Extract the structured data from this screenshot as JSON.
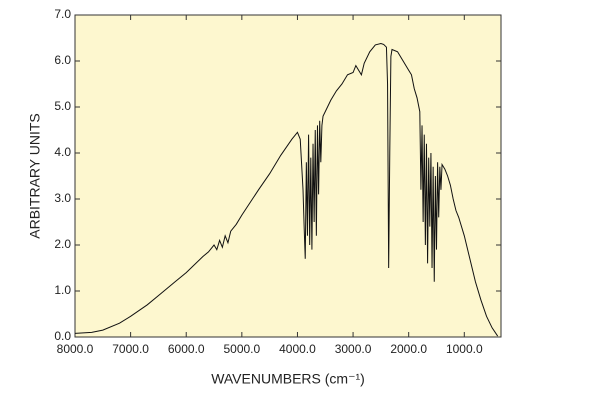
{
  "chart_data": {
    "type": "line",
    "x_label": "WAVENUMBERS (cm⁻¹)",
    "y_label": "ARBITRARY UNITS",
    "xlim": [
      8000,
      340
    ],
    "ylim": [
      0,
      7
    ],
    "xticks": [
      {
        "value": 8000,
        "label": "8000.0"
      },
      {
        "value": 7000,
        "label": "7000.0"
      },
      {
        "value": 6000,
        "label": "6000.0"
      },
      {
        "value": 5000,
        "label": "5000.0"
      },
      {
        "value": 4000,
        "label": "4000.0"
      },
      {
        "value": 3000,
        "label": "3000.0"
      },
      {
        "value": 2000,
        "label": "2000.0"
      },
      {
        "value": 1000,
        "label": "1000.0"
      }
    ],
    "yticks": [
      {
        "value": 0,
        "label": "0.0"
      },
      {
        "value": 1,
        "label": "1.0"
      },
      {
        "value": 2,
        "label": "2.0"
      },
      {
        "value": 3,
        "label": "3.0"
      },
      {
        "value": 4,
        "label": "4.0"
      },
      {
        "value": 5,
        "label": "5.0"
      },
      {
        "value": 6,
        "label": "6.0"
      },
      {
        "value": 7,
        "label": "7.0"
      }
    ],
    "plot_background": "#fdf7cf",
    "series": [
      {
        "color": "#111111",
        "x": [
          8000,
          7700,
          7500,
          7200,
          7000,
          6700,
          6500,
          6200,
          6000,
          5700,
          5600,
          5500,
          5450,
          5400,
          5350,
          5300,
          5250,
          5200,
          5100,
          5000,
          4700,
          4500,
          4300,
          4100,
          4000,
          3950,
          3900,
          3880,
          3860,
          3840,
          3820,
          3800,
          3780,
          3760,
          3740,
          3720,
          3700,
          3680,
          3660,
          3640,
          3620,
          3600,
          3580,
          3560,
          3540,
          3500,
          3400,
          3300,
          3200,
          3100,
          3000,
          2950,
          2900,
          2850,
          2800,
          2700,
          2600,
          2500,
          2450,
          2400,
          2380,
          2360,
          2340,
          2320,
          2300,
          2200,
          2100,
          2000,
          1950,
          1900,
          1850,
          1800,
          1780,
          1760,
          1740,
          1720,
          1700,
          1680,
          1660,
          1640,
          1620,
          1600,
          1580,
          1560,
          1540,
          1520,
          1500,
          1480,
          1460,
          1440,
          1420,
          1400,
          1350,
          1300,
          1250,
          1200,
          1150,
          1100,
          1000,
          900,
          800,
          700,
          600,
          500,
          400
        ],
        "values": [
          0.08,
          0.1,
          0.15,
          0.3,
          0.45,
          0.7,
          0.9,
          1.2,
          1.4,
          1.75,
          1.85,
          2.0,
          1.9,
          2.1,
          1.95,
          2.2,
          2.05,
          2.3,
          2.45,
          2.65,
          3.2,
          3.55,
          3.95,
          4.3,
          4.45,
          4.3,
          3.2,
          2.4,
          1.7,
          3.8,
          2.2,
          4.4,
          2.0,
          3.9,
          1.9,
          4.2,
          2.5,
          4.5,
          2.2,
          4.6,
          3.1,
          4.7,
          3.8,
          4.6,
          4.8,
          4.9,
          5.15,
          5.35,
          5.5,
          5.7,
          5.75,
          5.9,
          5.8,
          5.7,
          5.95,
          6.2,
          6.35,
          6.38,
          6.36,
          6.3,
          5.5,
          1.5,
          4.0,
          6.1,
          6.25,
          6.2,
          6.0,
          5.8,
          5.7,
          5.4,
          5.2,
          4.9,
          3.2,
          4.6,
          2.5,
          4.4,
          2.0,
          4.2,
          1.6,
          3.9,
          2.4,
          4.0,
          1.5,
          3.7,
          1.2,
          3.5,
          1.9,
          3.8,
          2.6,
          3.7,
          3.2,
          3.75,
          3.65,
          3.5,
          3.3,
          3.0,
          2.75,
          2.6,
          2.2,
          1.7,
          1.2,
          0.8,
          0.45,
          0.2,
          0.02
        ]
      }
    ]
  }
}
